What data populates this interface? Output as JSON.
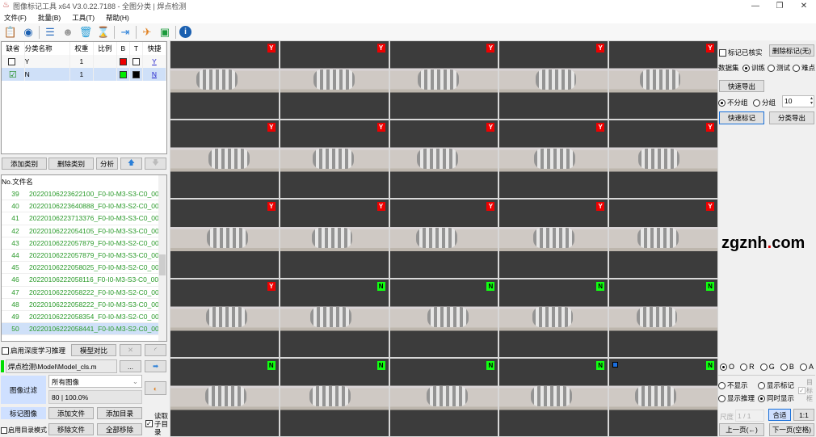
{
  "window": {
    "title": "图像标记工具 x64 V3.0.22.7188 - 全图分类 | 焊点检测",
    "min": "—",
    "max": "❐",
    "close": "✕"
  },
  "menu": [
    "文件(F)",
    "批量(B)",
    "工具(T)",
    "帮助(H)"
  ],
  "toolbar_icons": [
    "clipboard-icon",
    "refresh-icon",
    "list-icon",
    "brain-icon",
    "trash-icon",
    "hourglass-icon",
    "export-icon",
    "run-icon",
    "cycle-icon",
    "info-icon"
  ],
  "class_table": {
    "headers": [
      "缺省",
      "分类名称",
      "权重",
      "比例",
      "B",
      "T",
      "快捷"
    ],
    "rows": [
      {
        "default": false,
        "name": "Y",
        "weight": "1",
        "ratio": "",
        "b": "#ee0000",
        "t": "#ffffff",
        "key": "Y"
      },
      {
        "default": true,
        "name": "N",
        "weight": "1",
        "ratio": "",
        "b": "#00ee00",
        "t": "#000000",
        "key": "N"
      }
    ]
  },
  "class_buttons": {
    "add": "添加类别",
    "delete": "删除类别",
    "analyze": "分析"
  },
  "file_list": {
    "headers": [
      "No.",
      "文件名"
    ],
    "rows": [
      {
        "no": "39",
        "name": "20220106223622100_F0-I0-M3-S3-C0_00"
      },
      {
        "no": "40",
        "name": "20220106223640888_F0-I0-M3-S2-C0_00"
      },
      {
        "no": "41",
        "name": "20220106223713376_F0-I0-M3-S3-C0_00"
      },
      {
        "no": "42",
        "name": "20220106222054105_F0-I0-M3-S3-C0_00"
      },
      {
        "no": "43",
        "name": "20220106222057879_F0-I0-M3-S2-C0_00"
      },
      {
        "no": "44",
        "name": "20220106222057879_F0-I0-M3-S3-C0_00"
      },
      {
        "no": "45",
        "name": "20220106222058025_F0-I0-M3-S2-C0_00"
      },
      {
        "no": "46",
        "name": "20220106222058116_F0-I0-M3-S3-C0_00"
      },
      {
        "no": "47",
        "name": "20220106222058222_F0-I0-M3-S2-C0_00"
      },
      {
        "no": "48",
        "name": "20220106222058222_F0-I0-M3-S3-C0_00"
      },
      {
        "no": "49",
        "name": "20220106222058354_F0-I0-M3-S2-C0_00"
      },
      {
        "no": "50",
        "name": "20220106222058441_F0-I0-M3-S2-C0_00"
      }
    ],
    "selected": "50"
  },
  "inference": {
    "enable_label": "启用深度学习推理",
    "enabled": false,
    "compare": "模型对比",
    "model_path": "焊点检测\\Model\\Model_cls.m",
    "browse": "..."
  },
  "filter": {
    "label": "图像过滤",
    "selected": "所有图像",
    "stats": "80 | 100.0%"
  },
  "file_ops": {
    "mark_images": "标记图像",
    "add_file": "添加文件",
    "add_dir": "添加目录",
    "dir_mode": "启用目录模式",
    "remove_file": "移除文件",
    "remove_all": "全部移除",
    "read_subdir": "读取子目录",
    "read_subdir_checked": true
  },
  "grid": {
    "labels": [
      "Y",
      "Y",
      "Y",
      "Y",
      "Y",
      "Y",
      "Y",
      "Y",
      "Y",
      "Y",
      "Y",
      "Y",
      "Y",
      "Y",
      "Y",
      "Y",
      "N",
      "N",
      "N",
      "N",
      "N",
      "N",
      "N",
      "N",
      "N"
    ],
    "marked_index": 24,
    "label_colors": {
      "Y": "#ee0000",
      "N": "#11ee11"
    }
  },
  "right": {
    "verified": "标记已核实",
    "delete_marks": "删除标记(无)",
    "dataset_label": "数据集",
    "datasets": [
      "训练",
      "测试",
      "难点"
    ],
    "dataset_selected": "训练",
    "quick_export": "快速导出",
    "no_group": "不分组",
    "group": "分组",
    "group_selected": "不分组",
    "group_count": "10",
    "quick_mark": "快速标记",
    "class_export": "分类导出",
    "channels": [
      "O",
      "R",
      "G",
      "B",
      "A"
    ],
    "channel_selected": "O",
    "display": [
      "不显示",
      "显示标记",
      "显示推理",
      "同时显示"
    ],
    "display_selected": "同时显示",
    "target_box": "目标框",
    "scale_label": "尺度",
    "scale_value": "1 / 1",
    "fit": "合适",
    "one_to_one": "1:1",
    "prev": "上一页(←)",
    "next": "下一页(空格)"
  },
  "watermark": "zgznh.com"
}
